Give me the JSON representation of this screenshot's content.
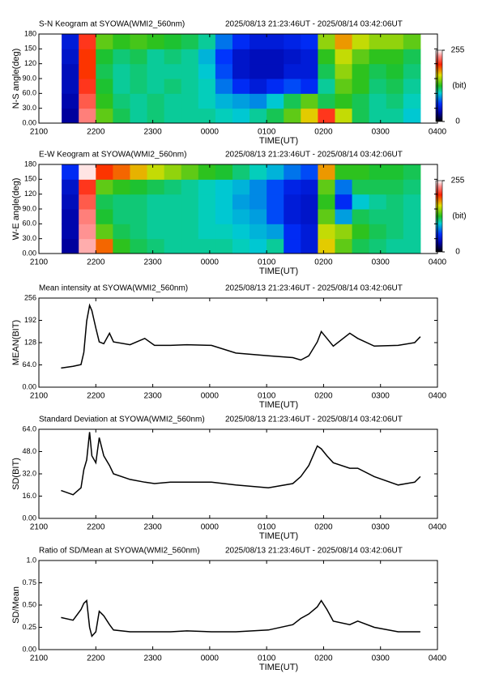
{
  "chart_data": [
    {
      "type": "heatmap",
      "title": "S-N Keogram at SYOWA(WMI2_560nm)",
      "subtitle": "2025/08/13 21:23:46UT - 2025/08/14 03:42:06UT",
      "xlabel": "TIME(UT)",
      "ylabel": "N-S angle(deg)",
      "xlim": [
        21,
        28
      ],
      "xticks": [
        {
          "value": 21,
          "label": "2100"
        },
        {
          "value": 22,
          "label": "2200"
        },
        {
          "value": 23,
          "label": "2300"
        },
        {
          "value": 24,
          "label": "0000"
        },
        {
          "value": 25,
          "label": "0100"
        },
        {
          "value": 26,
          "label": "0200"
        },
        {
          "value": 27,
          "label": "0300"
        },
        {
          "value": 28,
          "label": "0400"
        }
      ],
      "ylim": [
        0,
        180
      ],
      "yticks": [
        {
          "value": 0,
          "label": "0.00"
        },
        {
          "value": 30,
          "label": "30.0"
        },
        {
          "value": 60,
          "label": "60.0"
        },
        {
          "value": 90,
          "label": "90.0"
        },
        120,
        150,
        180
      ],
      "x": [
        21.4,
        21.7,
        22.0,
        22.3,
        22.6,
        22.9,
        23.2,
        23.5,
        23.8,
        24.1,
        24.4,
        24.7,
        25.0,
        25.3,
        25.6,
        25.9,
        26.2,
        26.5,
        26.8,
        27.1,
        27.4
      ],
      "y": [
        15,
        45,
        75,
        105,
        135,
        165
      ],
      "values": [
        [
          30,
          230,
          140,
          120,
          110,
          115,
          110,
          110,
          110,
          105,
          100,
          110,
          120,
          140,
          170,
          210,
          160,
          120,
          110,
          110,
          100
        ],
        [
          35,
          220,
          130,
          115,
          110,
          115,
          110,
          110,
          105,
          95,
          90,
          85,
          100,
          120,
          140,
          120,
          130,
          120,
          110,
          115,
          105
        ],
        [
          40,
          210,
          125,
          110,
          115,
          110,
          115,
          110,
          105,
          80,
          60,
          50,
          60,
          70,
          60,
          110,
          140,
          130,
          115,
          120,
          110
        ],
        [
          40,
          200,
          120,
          110,
          115,
          110,
          110,
          110,
          100,
          70,
          45,
          40,
          40,
          50,
          50,
          120,
          150,
          130,
          120,
          125,
          115
        ],
        [
          45,
          200,
          125,
          115,
          120,
          110,
          115,
          110,
          95,
          65,
          45,
          40,
          40,
          45,
          50,
          130,
          160,
          140,
          130,
          130,
          120
        ],
        [
          50,
          210,
          140,
          130,
          135,
          130,
          125,
          120,
          110,
          80,
          60,
          50,
          50,
          55,
          60,
          150,
          180,
          160,
          150,
          150,
          140
        ]
      ],
      "clim": [
        0,
        255
      ],
      "colorbar_ticks": [
        0,
        255
      ],
      "colorbar_label": "(bit)"
    },
    {
      "type": "heatmap",
      "title": "E-W Keogram at SYOWA(WMI2_560nm)",
      "subtitle": "2025/08/13 21:23:46UT - 2025/08/14 03:42:06UT",
      "xlabel": "TIME(UT)",
      "ylabel": "W-E angle(deg)",
      "xlim": [
        21,
        28
      ],
      "xticks": [
        {
          "value": 21,
          "label": "2100"
        },
        {
          "value": 22,
          "label": "2200"
        },
        {
          "value": 23,
          "label": "2300"
        },
        {
          "value": 24,
          "label": "0000"
        },
        {
          "value": 25,
          "label": "0100"
        },
        {
          "value": 26,
          "label": "0200"
        },
        {
          "value": 27,
          "label": "0300"
        },
        {
          "value": 28,
          "label": "0400"
        }
      ],
      "ylim": [
        0,
        180
      ],
      "yticks": [
        {
          "value": 0,
          "label": "0.00"
        },
        {
          "value": 30,
          "label": "30.0"
        },
        {
          "value": 60,
          "label": "60.0"
        },
        {
          "value": 90,
          "label": "90.0"
        },
        120,
        150,
        180
      ],
      "x": [
        21.4,
        21.7,
        22.0,
        22.3,
        22.6,
        22.9,
        23.2,
        23.5,
        23.8,
        24.1,
        24.4,
        24.7,
        25.0,
        25.3,
        25.6,
        25.9,
        26.2,
        26.5,
        26.8,
        27.1,
        27.4
      ],
      "y": [
        15,
        45,
        75,
        105,
        135,
        165
      ],
      "values": [
        [
          30,
          240,
          190,
          130,
          120,
          115,
          110,
          110,
          110,
          110,
          105,
          100,
          110,
          60,
          50,
          170,
          140,
          120,
          115,
          110,
          110
        ],
        [
          35,
          235,
          140,
          120,
          115,
          110,
          110,
          110,
          105,
          105,
          100,
          95,
          90,
          60,
          50,
          160,
          150,
          130,
          120,
          115,
          110
        ],
        [
          35,
          230,
          125,
          115,
          115,
          110,
          110,
          110,
          105,
          100,
          95,
          90,
          70,
          50,
          45,
          140,
          90,
          120,
          115,
          115,
          110
        ],
        [
          40,
          220,
          120,
          115,
          115,
          110,
          110,
          110,
          105,
          100,
          90,
          85,
          70,
          50,
          45,
          130,
          60,
          100,
          110,
          115,
          110
        ],
        [
          45,
          210,
          140,
          130,
          125,
          120,
          115,
          110,
          105,
          100,
          95,
          85,
          70,
          55,
          50,
          140,
          80,
          120,
          120,
          120,
          115
        ],
        [
          60,
          250,
          200,
          190,
          175,
          160,
          150,
          140,
          130,
          125,
          115,
          105,
          95,
          80,
          70,
          180,
          130,
          130,
          125,
          125,
          120
        ]
      ],
      "clim": [
        0,
        255
      ],
      "colorbar_ticks": [
        0,
        255
      ],
      "colorbar_label": "(bit)"
    },
    {
      "type": "line",
      "title": "Mean intensity at SYOWA(WMI2_560nm)",
      "subtitle": "2025/08/13 21:23:46UT - 2025/08/14 03:42:06UT",
      "xlabel": "TIME(UT)",
      "ylabel": "MEAN(BIT)",
      "color": "#000000",
      "xlim": [
        21,
        28
      ],
      "xticks": [
        {
          "value": 21,
          "label": "2100"
        },
        {
          "value": 22,
          "label": "2200"
        },
        {
          "value": 23,
          "label": "2300"
        },
        {
          "value": 24,
          "label": "0000"
        },
        {
          "value": 25,
          "label": "0100"
        },
        {
          "value": 26,
          "label": "0200"
        },
        {
          "value": 27,
          "label": "0300"
        },
        {
          "value": 28,
          "label": "0400"
        }
      ],
      "ylim": [
        0,
        256
      ],
      "yticks": [
        {
          "value": 0,
          "label": "0.00"
        },
        {
          "value": 64,
          "label": "64.0"
        },
        128,
        192,
        256
      ],
      "x": [
        21.39,
        21.6,
        21.74,
        21.79,
        21.84,
        21.89,
        21.93,
        22.0,
        22.06,
        22.14,
        22.24,
        22.31,
        22.6,
        22.86,
        23.03,
        23.31,
        23.6,
        24.03,
        24.46,
        25.03,
        25.46,
        25.6,
        25.74,
        25.89,
        25.96,
        26.06,
        26.17,
        26.46,
        26.6,
        26.89,
        27.31,
        27.6,
        27.7
      ],
      "values": [
        55,
        60,
        65,
        100,
        190,
        235,
        220,
        170,
        130,
        125,
        155,
        130,
        122,
        140,
        120,
        120,
        122,
        120,
        98,
        90,
        85,
        78,
        90,
        130,
        160,
        140,
        118,
        155,
        140,
        118,
        120,
        128,
        145
      ]
    },
    {
      "type": "line",
      "title": "Standard Deviation at SYOWA(WMI2_560nm)",
      "subtitle": "2025/08/13 21:23:46UT - 2025/08/14 03:42:06UT",
      "xlabel": "TIME(UT)",
      "ylabel": "SD(BIT)",
      "color": "#000000",
      "xlim": [
        21,
        28
      ],
      "xticks": [
        {
          "value": 21,
          "label": "2100"
        },
        {
          "value": 22,
          "label": "2200"
        },
        {
          "value": 23,
          "label": "2300"
        },
        {
          "value": 24,
          "label": "0000"
        },
        {
          "value": 25,
          "label": "0100"
        },
        {
          "value": 26,
          "label": "0200"
        },
        {
          "value": 27,
          "label": "0300"
        },
        {
          "value": 28,
          "label": "0400"
        }
      ],
      "ylim": [
        0,
        64
      ],
      "yticks": [
        {
          "value": 0,
          "label": "0.00"
        },
        {
          "value": 16,
          "label": "16.0"
        },
        {
          "value": 32,
          "label": "32.0"
        },
        {
          "value": 48,
          "label": "48.0"
        },
        {
          "value": 64,
          "label": "64.0"
        }
      ],
      "x": [
        21.39,
        21.6,
        21.74,
        21.79,
        21.84,
        21.89,
        21.93,
        22.0,
        22.06,
        22.14,
        22.24,
        22.31,
        22.6,
        22.86,
        23.03,
        23.31,
        23.6,
        24.03,
        24.46,
        25.03,
        25.46,
        25.6,
        25.74,
        25.89,
        25.96,
        26.06,
        26.17,
        26.46,
        26.6,
        26.89,
        27.31,
        27.6,
        27.7
      ],
      "values": [
        20,
        17,
        22,
        35,
        42,
        62,
        45,
        40,
        58,
        45,
        38,
        32,
        28,
        26,
        25,
        26,
        26,
        26,
        24,
        22,
        25,
        30,
        38,
        52,
        50,
        45,
        40,
        36,
        36,
        30,
        24,
        26,
        30
      ]
    },
    {
      "type": "line",
      "title": "Ratio of SD/Mean at SYOWA(WMI2_560nm)",
      "subtitle": "2025/08/13 21:23:46UT - 2025/08/14 03:42:06UT",
      "xlabel": "TIME(UT)",
      "ylabel": "SD/Mean",
      "color": "#000000",
      "xlim": [
        21,
        28
      ],
      "xticks": [
        {
          "value": 21,
          "label": "2100"
        },
        {
          "value": 22,
          "label": "2200"
        },
        {
          "value": 23,
          "label": "2300"
        },
        {
          "value": 24,
          "label": "0000"
        },
        {
          "value": 25,
          "label": "0100"
        },
        {
          "value": 26,
          "label": "0200"
        },
        {
          "value": 27,
          "label": "0300"
        },
        {
          "value": 28,
          "label": "0400"
        }
      ],
      "ylim": [
        0,
        1
      ],
      "yticks": [
        {
          "value": 0,
          "label": "0.00"
        },
        0.25,
        {
          "value": 0.5,
          "label": "0.50"
        },
        0.75,
        {
          "value": 1,
          "label": "1.0"
        }
      ],
      "x": [
        21.39,
        21.6,
        21.74,
        21.79,
        21.84,
        21.89,
        21.93,
        22.0,
        22.06,
        22.14,
        22.24,
        22.31,
        22.6,
        22.86,
        23.03,
        23.31,
        23.6,
        24.03,
        24.46,
        25.03,
        25.46,
        25.6,
        25.74,
        25.89,
        25.96,
        26.06,
        26.17,
        26.46,
        26.6,
        26.89,
        27.31,
        27.6,
        27.7
      ],
      "values": [
        0.36,
        0.33,
        0.45,
        0.52,
        0.55,
        0.25,
        0.15,
        0.2,
        0.43,
        0.38,
        0.28,
        0.22,
        0.2,
        0.2,
        0.2,
        0.2,
        0.21,
        0.2,
        0.2,
        0.22,
        0.28,
        0.35,
        0.4,
        0.48,
        0.55,
        0.45,
        0.32,
        0.28,
        0.32,
        0.25,
        0.2,
        0.2,
        0.2
      ]
    }
  ]
}
